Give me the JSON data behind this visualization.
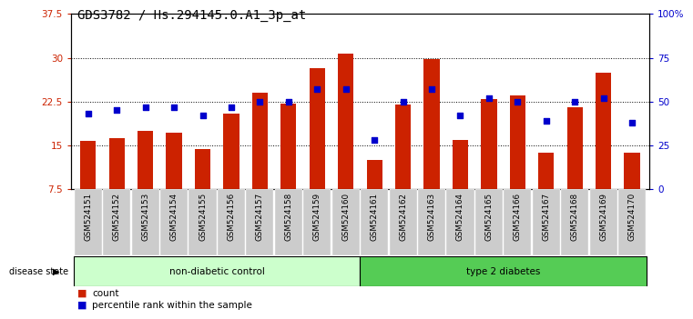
{
  "title": "GDS3782 / Hs.294145.0.A1_3p_at",
  "samples": [
    "GSM524151",
    "GSM524152",
    "GSM524153",
    "GSM524154",
    "GSM524155",
    "GSM524156",
    "GSM524157",
    "GSM524158",
    "GSM524159",
    "GSM524160",
    "GSM524161",
    "GSM524162",
    "GSM524163",
    "GSM524164",
    "GSM524165",
    "GSM524166",
    "GSM524167",
    "GSM524168",
    "GSM524169",
    "GSM524170"
  ],
  "counts": [
    15.8,
    16.2,
    17.5,
    17.1,
    14.3,
    20.5,
    24.0,
    22.2,
    28.2,
    30.7,
    12.5,
    22.0,
    29.7,
    16.0,
    23.0,
    23.5,
    13.8,
    21.5,
    27.5,
    13.8
  ],
  "percentiles": [
    43,
    45,
    47,
    47,
    42,
    47,
    50,
    50,
    57,
    57,
    28,
    50,
    57,
    42,
    52,
    50,
    39,
    50,
    52,
    38
  ],
  "non_diabetic_count": 10,
  "ylim_left": [
    7.5,
    37.5
  ],
  "ylim_right": [
    0,
    100
  ],
  "yticks_left": [
    7.5,
    15.0,
    22.5,
    30.0,
    37.5
  ],
  "yticks_right": [
    0,
    25,
    50,
    75,
    100
  ],
  "ytick_labels_left": [
    "7.5",
    "15",
    "22.5",
    "30",
    "37.5"
  ],
  "ytick_labels_right": [
    "0",
    "25",
    "50",
    "75",
    "100%"
  ],
  "bar_color": "#CC2200",
  "dot_color": "#0000CC",
  "grid_color": "#000000",
  "bg_color": "#ffffff",
  "plot_bg": "#ffffff",
  "non_diabetic_label": "non-diabetic control",
  "diabetic_label": "type 2 diabetes",
  "non_diabetic_bg": "#ccffcc",
  "diabetic_bg": "#55cc55",
  "disease_state_label": "disease state",
  "legend_count_label": "count",
  "legend_percentile_label": "percentile rank within the sample",
  "xticklabel_bg": "#cccccc",
  "title_fontsize": 10,
  "tick_fontsize": 7.5,
  "bar_width": 0.55
}
